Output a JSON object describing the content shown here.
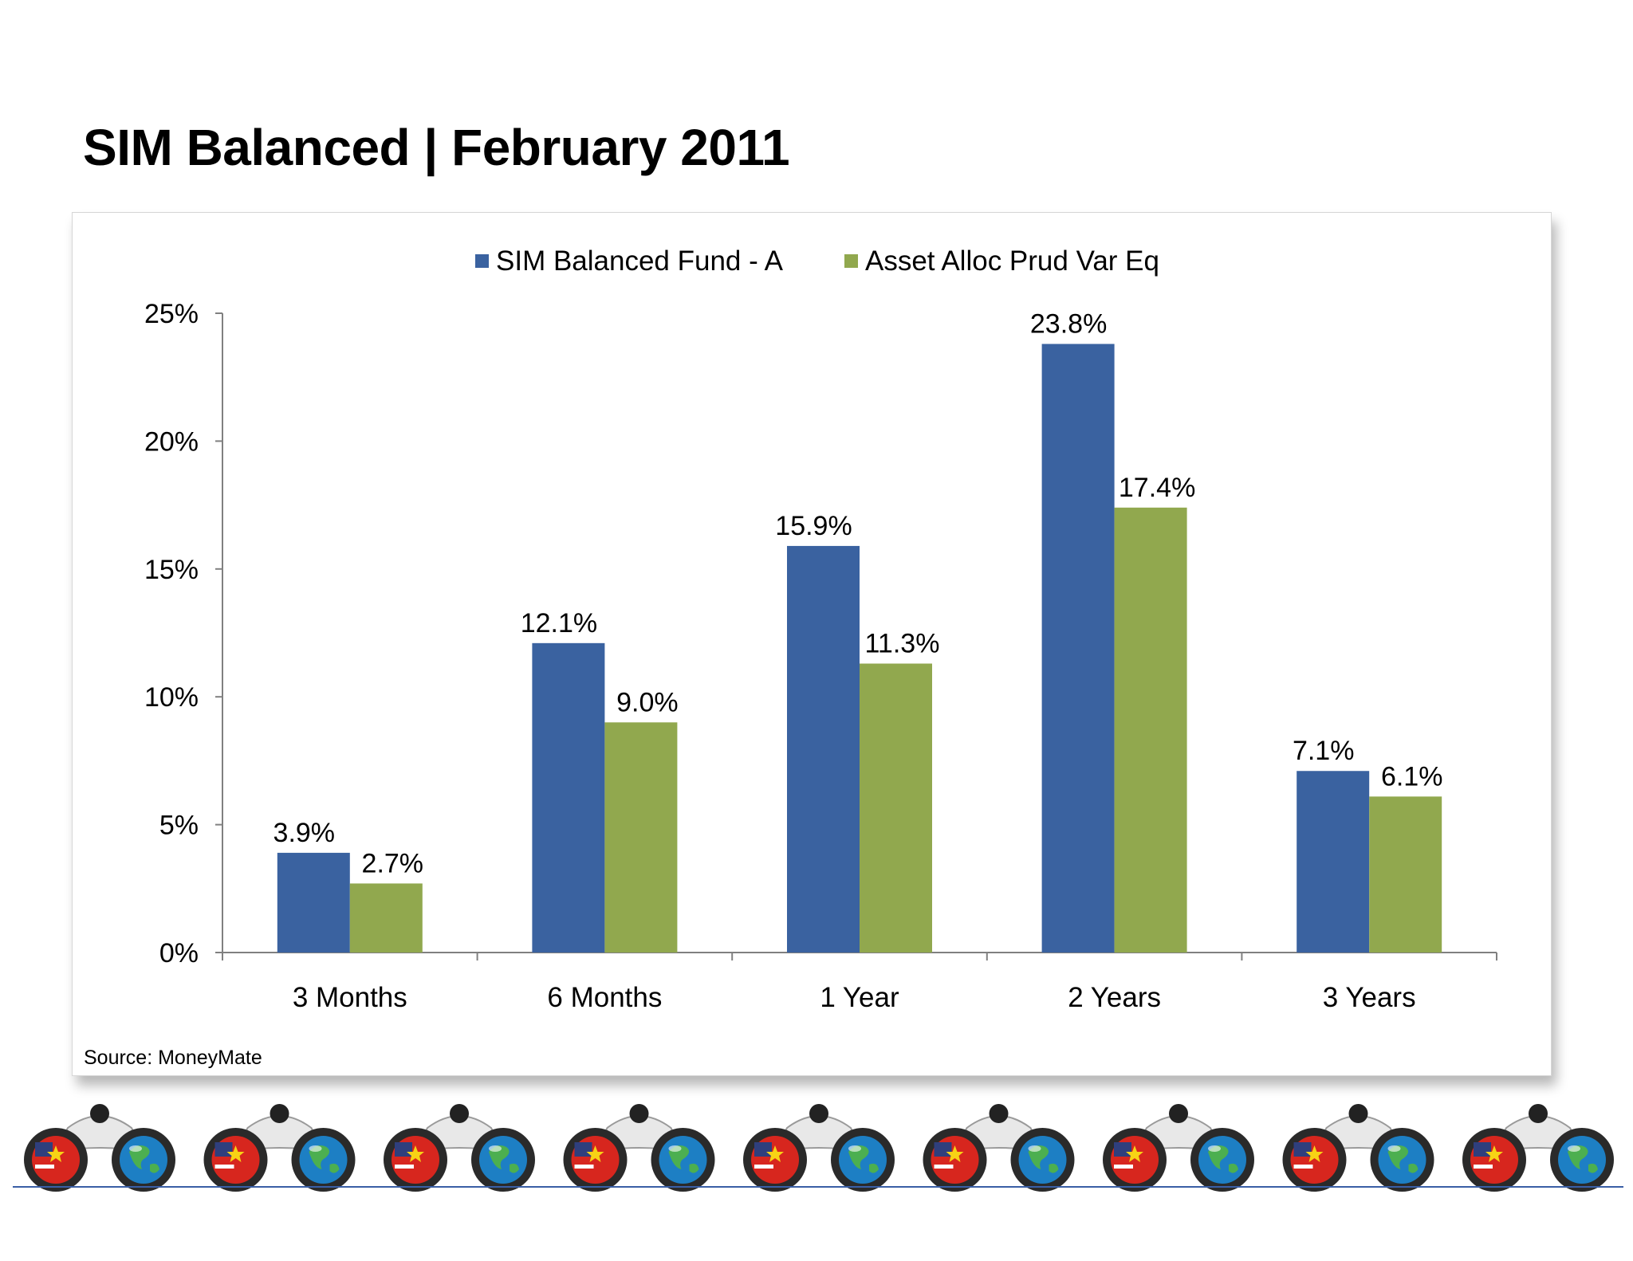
{
  "page": {
    "title": "SIM Balanced | February 2011"
  },
  "source": "Source: MoneyMate",
  "colors": {
    "series1": "#3A62A0",
    "series2": "#91A84E",
    "axis": "#808080"
  },
  "footer": {
    "repeated_icon": "binoculars-flag-globe-icon",
    "count": 9
  },
  "chart_data": {
    "type": "bar",
    "title": "",
    "xlabel": "",
    "ylabel": "",
    "categories": [
      "3 Months",
      "6 Months",
      "1 Year",
      "2 Years",
      "3 Years"
    ],
    "series": [
      {
        "name": "SIM Balanced Fund - A",
        "values": [
          3.9,
          12.1,
          15.9,
          23.8,
          7.1
        ],
        "labels": [
          "3.9%",
          "12.1%",
          "15.9%",
          "23.8%",
          "7.1%"
        ]
      },
      {
        "name": "Asset Alloc Prud Var Eq",
        "values": [
          2.7,
          9.0,
          11.3,
          17.4,
          6.1
        ],
        "labels": [
          "2.7%",
          "9.0%",
          "11.3%",
          "17.4%",
          "6.1%"
        ]
      }
    ],
    "ylim": [
      0,
      25
    ],
    "yticks": [
      0,
      5,
      10,
      15,
      20,
      25
    ],
    "ytick_labels": [
      "0%",
      "5%",
      "10%",
      "15%",
      "20%",
      "25%"
    ],
    "grid": false,
    "legend": "top-center"
  }
}
